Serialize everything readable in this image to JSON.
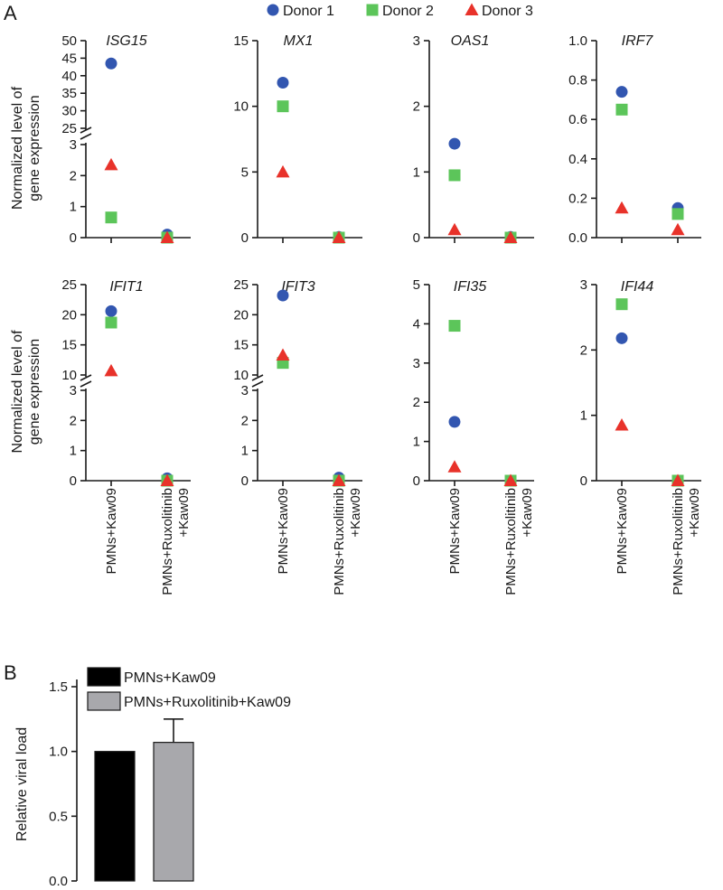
{
  "panel_labels": {
    "a": "A",
    "b": "B"
  },
  "colors": {
    "donor1": "#3256b0",
    "donor2": "#5cc55a",
    "donor3": "#e8322a",
    "bar1": "#000000",
    "bar2": "#a8a8ac"
  },
  "chart_data": [
    {
      "type": "scatter",
      "panel": "A",
      "title": "ISG15",
      "categories": [
        "PMNs+Kaw09",
        "PMNs+Ruxolitinib\n+Kaw09"
      ],
      "ylabel": "Normalized level of\ngene expression",
      "axis_break": {
        "lower_range": [
          0,
          3
        ],
        "upper_range": [
          25,
          50
        ]
      },
      "lower_ticks": [
        0,
        1,
        2,
        3
      ],
      "upper_ticks": [
        25,
        30,
        35,
        40,
        45,
        50
      ],
      "series": [
        {
          "name": "Donor 1",
          "values": [
            43.5,
            0.1
          ]
        },
        {
          "name": "Donor 2",
          "values": [
            0.65,
            0.0
          ]
        },
        {
          "name": "Donor 3",
          "values": [
            2.35,
            0.0
          ]
        }
      ]
    },
    {
      "type": "scatter",
      "panel": "A",
      "title": "MX1",
      "categories": [
        "PMNs+Kaw09",
        "PMNs+Ruxolitinib\n+Kaw09"
      ],
      "ylim": [
        0,
        15
      ],
      "ticks": [
        0,
        5,
        10,
        15
      ],
      "series": [
        {
          "name": "Donor 1",
          "values": [
            11.8,
            0.05
          ]
        },
        {
          "name": "Donor 2",
          "values": [
            10.0,
            0.0
          ]
        },
        {
          "name": "Donor 3",
          "values": [
            5.0,
            0.0
          ]
        }
      ]
    },
    {
      "type": "scatter",
      "panel": "A",
      "title": "OAS1",
      "categories": [
        "PMNs+Kaw09",
        "PMNs+Ruxolitinib\n+Kaw09"
      ],
      "ylim": [
        0,
        3
      ],
      "ticks": [
        0,
        1,
        2,
        3
      ],
      "series": [
        {
          "name": "Donor 1",
          "values": [
            1.43,
            0.01
          ]
        },
        {
          "name": "Donor 2",
          "values": [
            0.95,
            0.0
          ]
        },
        {
          "name": "Donor 3",
          "values": [
            0.12,
            0.0
          ]
        }
      ]
    },
    {
      "type": "scatter",
      "panel": "A",
      "title": "IRF7",
      "categories": [
        "PMNs+Kaw09",
        "PMNs+Ruxolitinib\n+Kaw09"
      ],
      "ylim": [
        0,
        1.0
      ],
      "ticks": [
        0.0,
        0.2,
        0.4,
        0.6,
        0.8,
        1.0
      ],
      "series": [
        {
          "name": "Donor 1",
          "values": [
            0.74,
            0.15
          ]
        },
        {
          "name": "Donor 2",
          "values": [
            0.65,
            0.12
          ]
        },
        {
          "name": "Donor 3",
          "values": [
            0.15,
            0.04
          ]
        }
      ]
    },
    {
      "type": "scatter",
      "panel": "A",
      "title": "IFIT1",
      "categories": [
        "PMNs+Kaw09",
        "PMNs+Ruxolitinib\n+Kaw09"
      ],
      "ylabel": "Normalized level of\ngene expression",
      "axis_break": {
        "lower_range": [
          0,
          3
        ],
        "upper_range": [
          10,
          25
        ]
      },
      "lower_ticks": [
        0,
        1,
        2,
        3
      ],
      "upper_ticks": [
        10,
        15,
        20,
        25
      ],
      "series": [
        {
          "name": "Donor 1",
          "values": [
            20.6,
            0.08
          ]
        },
        {
          "name": "Donor 2",
          "values": [
            18.7,
            0.0
          ]
        },
        {
          "name": "Donor 3",
          "values": [
            10.7,
            0.0
          ]
        }
      ]
    },
    {
      "type": "scatter",
      "panel": "A",
      "title": "IFIT3",
      "categories": [
        "PMNs+Kaw09",
        "PMNs+Ruxolitinib\n+Kaw09"
      ],
      "axis_break": {
        "lower_range": [
          0,
          3
        ],
        "upper_range": [
          10,
          25
        ]
      },
      "lower_ticks": [
        0,
        1,
        2,
        3
      ],
      "upper_ticks": [
        10,
        15,
        20,
        25
      ],
      "series": [
        {
          "name": "Donor 1",
          "values": [
            23.2,
            0.1
          ]
        },
        {
          "name": "Donor 2",
          "values": [
            12.0,
            0.0
          ]
        },
        {
          "name": "Donor 3",
          "values": [
            13.3,
            0.0
          ]
        }
      ]
    },
    {
      "type": "scatter",
      "panel": "A",
      "title": "IFI35",
      "categories": [
        "PMNs+Kaw09",
        "PMNs+Ruxolitinib\n+Kaw09"
      ],
      "ylim": [
        0,
        5
      ],
      "ticks": [
        0,
        1,
        2,
        3,
        4,
        5
      ],
      "series": [
        {
          "name": "Donor 1",
          "values": [
            1.5,
            0.0
          ]
        },
        {
          "name": "Donor 2",
          "values": [
            3.95,
            0.0
          ]
        },
        {
          "name": "Donor 3",
          "values": [
            0.35,
            0.0
          ]
        }
      ]
    },
    {
      "type": "scatter",
      "panel": "A",
      "title": "IFI44",
      "categories": [
        "PMNs+Kaw09",
        "PMNs+Ruxolitinib\n+Kaw09"
      ],
      "ylim": [
        0,
        3
      ],
      "ticks": [
        0,
        1,
        2,
        3
      ],
      "series": [
        {
          "name": "Donor 1",
          "values": [
            2.18,
            0.0
          ]
        },
        {
          "name": "Donor 2",
          "values": [
            2.7,
            0.0
          ]
        },
        {
          "name": "Donor 3",
          "values": [
            0.85,
            0.0
          ]
        }
      ]
    },
    {
      "type": "bar",
      "panel": "B",
      "title": "",
      "categories": [
        "PMNs+Kaw09",
        "PMNs+Ruxolitinib+Kaw09"
      ],
      "values": [
        1.0,
        1.07
      ],
      "error": [
        0,
        0.18
      ],
      "ylabel": "Relative viral load",
      "xlabel": "",
      "ylim": [
        0,
        1.5
      ],
      "ticks": [
        "0.0",
        "0.5",
        "1.0",
        "1.5"
      ]
    }
  ]
}
